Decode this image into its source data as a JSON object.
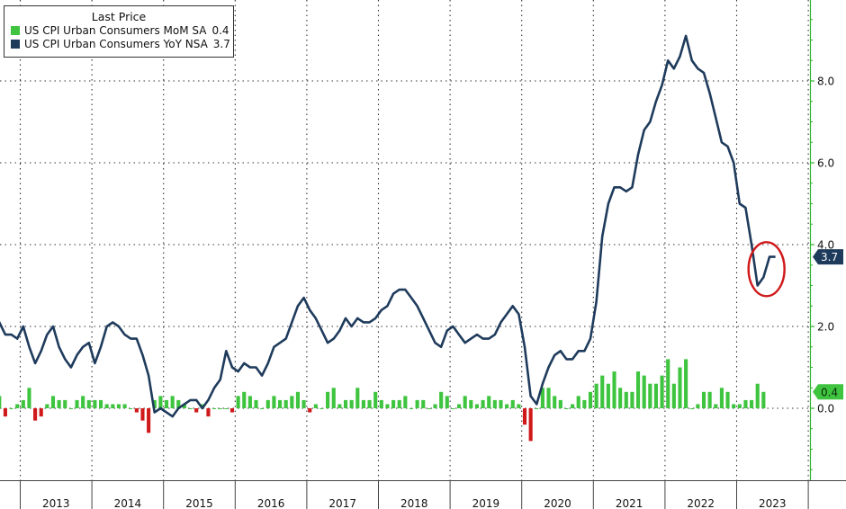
{
  "colors": {
    "line": "#1f3b5c",
    "bar_positive": "#3ec43e",
    "bar_negative": "#d0191b",
    "axis_right": "#2fb52f",
    "grid": "#333333",
    "highlight_circle": "#d0191b",
    "badge_line": "#1f3b5c",
    "badge_bar": "#3ec43e"
  },
  "legend": {
    "title": "Last Price",
    "items": [
      {
        "label": "US CPI Urban Consumers MoM SA",
        "value": "0.4",
        "color": "#3ec43e"
      },
      {
        "label": "US CPI Urban Consumers YoY NSA",
        "value": "3.7",
        "color": "#1f3b5c"
      }
    ]
  },
  "badges": {
    "line_value": "3.7",
    "bar_value": "0.4"
  },
  "chart_data": {
    "type": "line",
    "x_axis": {
      "labels": [
        "2013",
        "2014",
        "2015",
        "2016",
        "2017",
        "2018",
        "2019",
        "2020",
        "2021",
        "2022",
        "2023"
      ]
    },
    "y_axis": {
      "position": "right",
      "ticks": [
        "0.0",
        "2.0",
        "4.0",
        "6.0",
        "8.0"
      ],
      "ylim": [
        -1.7,
        10.0
      ]
    },
    "grid": true,
    "legend_position": "top-left",
    "series": [
      {
        "name": "US CPI Urban Consumers YoY NSA",
        "type": "line",
        "start": "2012-08",
        "values": [
          2.0,
          2.1,
          1.8,
          1.8,
          1.7,
          2.0,
          1.5,
          1.1,
          1.4,
          1.8,
          2.0,
          1.5,
          1.2,
          1.0,
          1.3,
          1.5,
          1.6,
          1.1,
          1.5,
          2.0,
          2.1,
          2.0,
          1.8,
          1.7,
          1.7,
          1.3,
          0.8,
          -0.1,
          0.0,
          -0.1,
          -0.2,
          0.0,
          0.1,
          0.2,
          0.2,
          0.0,
          0.2,
          0.5,
          0.7,
          1.4,
          1.0,
          0.9,
          1.1,
          1.0,
          1.0,
          0.8,
          1.1,
          1.5,
          1.6,
          1.7,
          2.1,
          2.5,
          2.7,
          2.4,
          2.2,
          1.9,
          1.6,
          1.7,
          1.9,
          2.2,
          2.0,
          2.2,
          2.1,
          2.1,
          2.2,
          2.4,
          2.5,
          2.8,
          2.9,
          2.9,
          2.7,
          2.5,
          2.2,
          1.9,
          1.6,
          1.5,
          1.9,
          2.0,
          1.8,
          1.6,
          1.7,
          1.8,
          1.7,
          1.7,
          1.8,
          2.1,
          2.3,
          2.5,
          2.3,
          1.5,
          0.3,
          0.1,
          0.6,
          1.0,
          1.3,
          1.4,
          1.2,
          1.2,
          1.4,
          1.4,
          1.7,
          2.6,
          4.2,
          5.0,
          5.4,
          5.4,
          5.3,
          5.4,
          6.2,
          6.8,
          7.0,
          7.5,
          7.9,
          8.5,
          8.3,
          8.6,
          9.1,
          8.5,
          8.3,
          8.2,
          7.7,
          7.1,
          6.5,
          6.4,
          6.0,
          5.0,
          4.9,
          4.0,
          3.0,
          3.2,
          3.7,
          3.7
        ]
      },
      {
        "name": "US CPI Urban Consumers MoM SA",
        "type": "bar",
        "start": "2012-08",
        "values": [
          0.5,
          0.3,
          -0.2,
          0.0,
          0.1,
          0.2,
          0.5,
          -0.3,
          -0.2,
          0.1,
          0.3,
          0.2,
          0.2,
          0.0,
          0.2,
          0.3,
          0.2,
          0.2,
          0.2,
          0.1,
          0.1,
          0.1,
          0.1,
          0.0,
          -0.1,
          -0.3,
          -0.6,
          0.2,
          0.3,
          0.2,
          0.3,
          0.2,
          0.1,
          0.0,
          -0.1,
          0.1,
          -0.2,
          0.0,
          0.0,
          0.0,
          -0.1,
          0.3,
          0.4,
          0.3,
          0.2,
          0.0,
          0.2,
          0.3,
          0.2,
          0.2,
          0.3,
          0.4,
          0.2,
          -0.1,
          0.1,
          0.0,
          0.4,
          0.5,
          0.1,
          0.2,
          0.2,
          0.5,
          0.2,
          0.2,
          0.4,
          0.2,
          0.1,
          0.2,
          0.2,
          0.3,
          0.0,
          0.2,
          0.2,
          0.0,
          0.1,
          0.4,
          0.3,
          0.0,
          0.1,
          0.3,
          0.2,
          0.1,
          0.2,
          0.3,
          0.2,
          0.2,
          0.1,
          0.2,
          0.1,
          -0.4,
          -0.8,
          0.0,
          0.5,
          0.5,
          0.3,
          0.2,
          0.0,
          0.1,
          0.3,
          0.2,
          0.4,
          0.6,
          0.8,
          0.6,
          0.9,
          0.5,
          0.4,
          0.4,
          0.9,
          0.8,
          0.6,
          0.6,
          0.8,
          1.2,
          0.6,
          1.0,
          1.2,
          0.0,
          0.1,
          0.4,
          0.4,
          0.1,
          0.5,
          0.4,
          0.1,
          0.1,
          0.2,
          0.2,
          0.6,
          0.4
        ]
      }
    ]
  }
}
